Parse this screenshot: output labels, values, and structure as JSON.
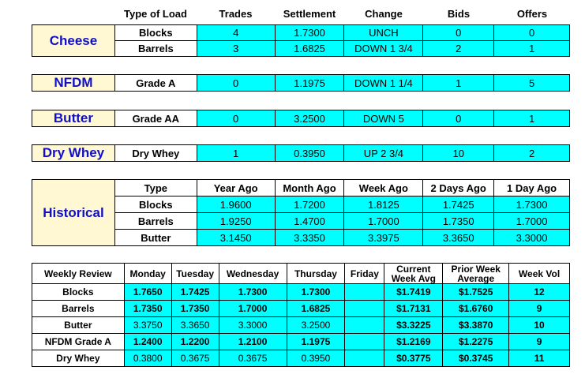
{
  "headers": {
    "type_of_load": "Type of Load",
    "trades": "Trades",
    "settlement": "Settlement",
    "change": "Change",
    "bids": "Bids",
    "offers": "Offers"
  },
  "cheese": {
    "label": "Cheese",
    "rows": [
      {
        "load": "Blocks",
        "trades": "4",
        "settlement": "1.7300",
        "change": "UNCH",
        "bids": "0",
        "offers": "0"
      },
      {
        "load": "Barrels",
        "trades": "3",
        "settlement": "1.6825",
        "change": "DOWN 1 3/4",
        "bids": "2",
        "offers": "1"
      }
    ]
  },
  "nfdm": {
    "label": "NFDM",
    "row": {
      "load": "Grade A",
      "trades": "0",
      "settlement": "1.1975",
      "change": "DOWN 1 1/4",
      "bids": "1",
      "offers": "5"
    }
  },
  "butter": {
    "label": "Butter",
    "row": {
      "load": "Grade AA",
      "trades": "0",
      "settlement": "3.2500",
      "change": "DOWN 5",
      "bids": "0",
      "offers": "1"
    }
  },
  "dry_whey": {
    "label": "Dry Whey",
    "row": {
      "load": "Dry Whey",
      "trades": "1",
      "settlement": "0.3950",
      "change": "UP 2 3/4",
      "bids": "10",
      "offers": "2"
    }
  },
  "historical": {
    "label": "Historical",
    "headers": [
      "Type",
      "Year Ago",
      "Month Ago",
      "Week Ago",
      "2 Days Ago",
      "1 Day Ago"
    ],
    "rows": [
      [
        "Blocks",
        "1.9600",
        "1.7200",
        "1.8125",
        "1.7425",
        "1.7300"
      ],
      [
        "Barrels",
        "1.9250",
        "1.4700",
        "1.7000",
        "1.7350",
        "1.7000"
      ],
      [
        "Butter",
        "3.1450",
        "3.3350",
        "3.3975",
        "3.3650",
        "3.3000"
      ]
    ]
  },
  "weekly": {
    "headers": [
      "Weekly Review",
      "Monday",
      "Tuesday",
      "Wednesday",
      "Thursday",
      "Friday",
      "Current\nWeek Avg",
      "Prior Week\nAverage",
      "Week Vol"
    ],
    "rows": [
      [
        "Blocks",
        "1.7650",
        "1.7425",
        "1.7300",
        "1.7300",
        "",
        "$1.7419",
        "$1.7525",
        "12"
      ],
      [
        "Barrels",
        "1.7350",
        "1.7350",
        "1.7000",
        "1.6825",
        "",
        "$1.7131",
        "$1.6760",
        "9"
      ],
      [
        "Butter",
        "3.3750",
        "3.3650",
        "3.3000",
        "3.2500",
        "",
        "$3.3225",
        "$3.3870",
        "10"
      ],
      [
        "NFDM Grade A",
        "1.2400",
        "1.2200",
        "1.2100",
        "1.1975",
        "",
        "$1.2169",
        "$1.2275",
        "9"
      ],
      [
        "Dry Whey",
        "0.3800",
        "0.3675",
        "0.3675",
        "0.3950",
        "",
        "$0.3775",
        "$0.3745",
        "11"
      ]
    ]
  },
  "colors": {
    "value_cell": "#00ffff",
    "label_cell": "#fff8d2",
    "label_text": "#1010c8"
  }
}
